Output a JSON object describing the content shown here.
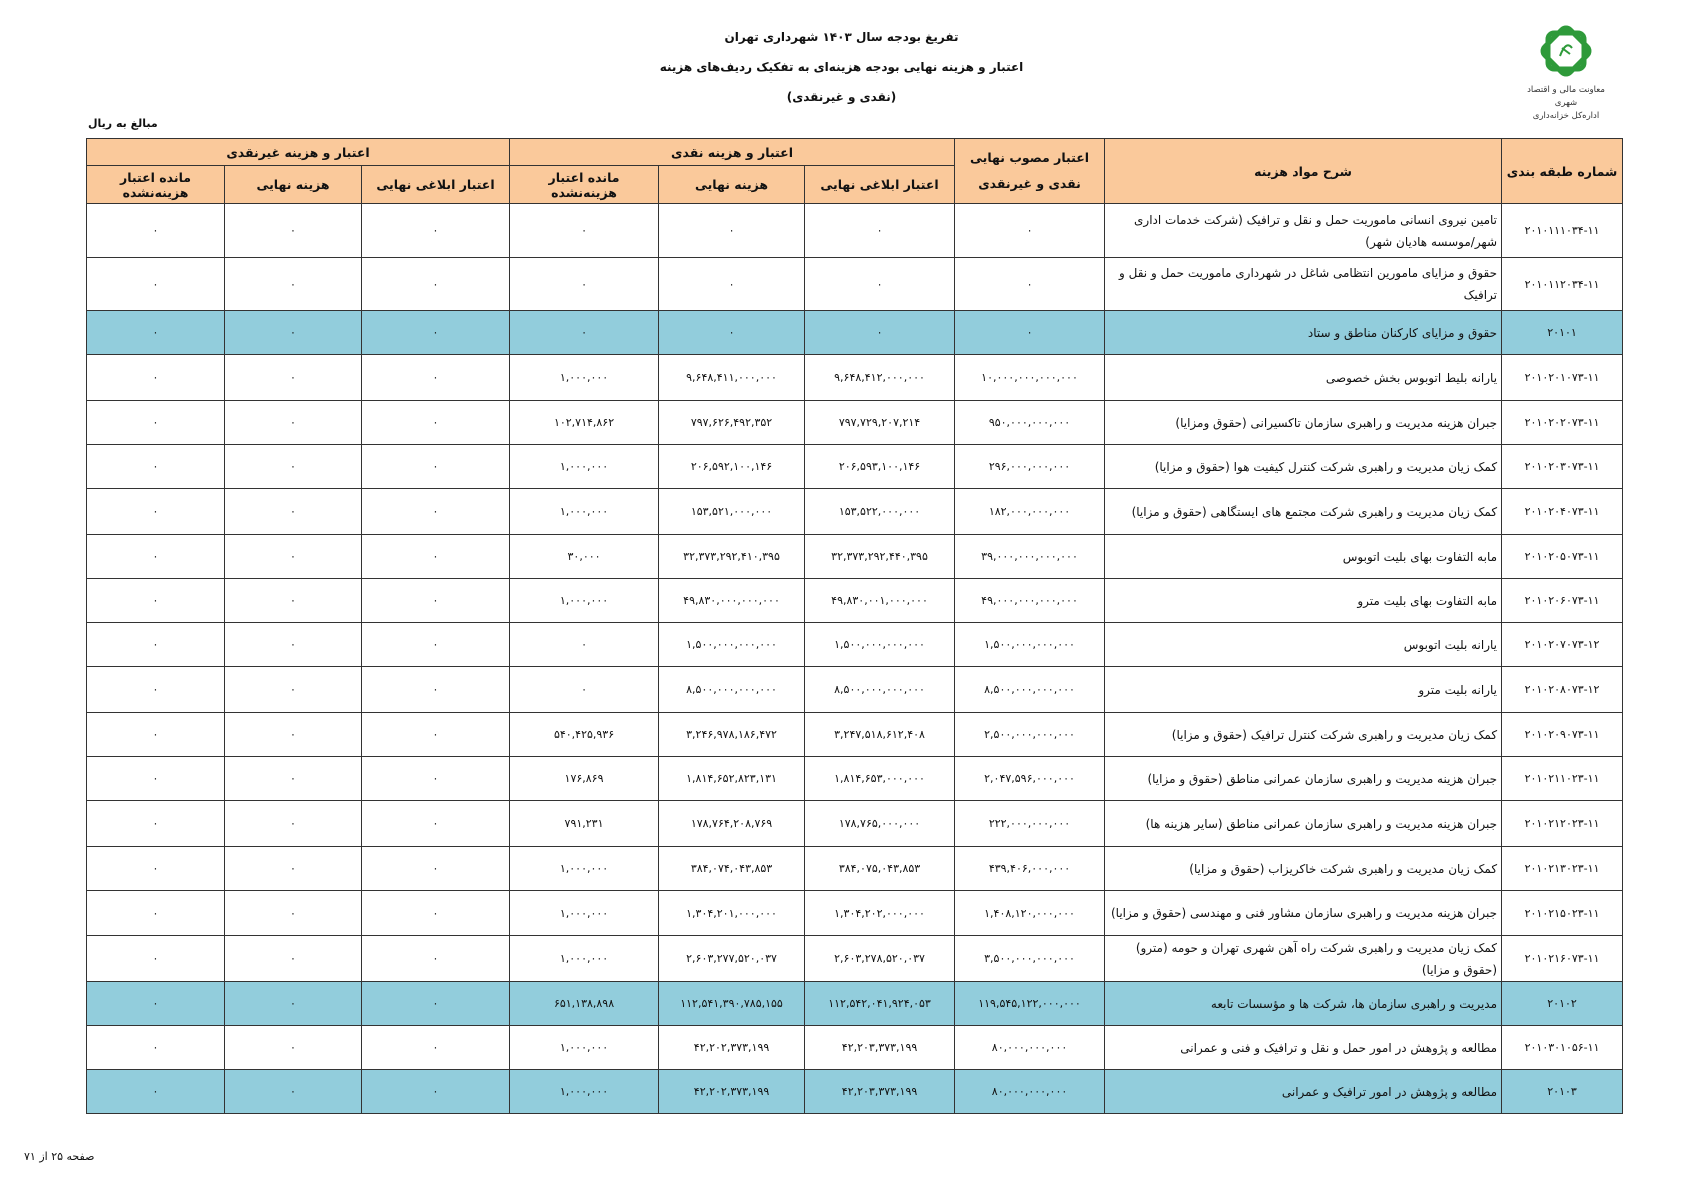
{
  "header": {
    "title": "تفریغ بودجه سال ۱۴۰۳ شهرداری تهران",
    "subtitle": "اعتبار و هزینه نهایی بودجه هزینه‌ای به تفکیک ردیف‌های هزینه",
    "subtitle2": "(نقدی و غیرنقدی)",
    "logo_caption_1": "معاونت مالی و اقتصاد شهری",
    "logo_caption_2": "اداره‌کل خزانه‌داری",
    "units": "مبالغ به ریال"
  },
  "colors": {
    "header_bg": "#FAC99B",
    "highlight_row": "#92CDDC"
  },
  "table": {
    "columns": {
      "code": "شماره طبقه بندی",
      "desc": "شرح مواد هزینه",
      "approved": "اعتبار مصوب نهایی نقدی و غیرنقدی",
      "cash_group": "اعتبار و هزینه نقدی",
      "noncash_group": "اعتبار و هزینه غیرنقدی",
      "final_credit": "اعتبار ابلاغی نهایی",
      "final_expense": "هزینه نهایی",
      "remaining": "مانده اعتبار هزینه‌نشده"
    },
    "rows": [
      {
        "code": "۲۰۱۰۱۱۱۰۳۴-۱۱",
        "desc": "تامین نیروی انسانی ماموریت حمل و نقل و ترافیک (شرکت خدمات اداری شهر/موسسه هادیان شهر)",
        "approved": "۰",
        "c_credit": "۰",
        "c_expense": "۰",
        "c_remain": "۰",
        "n_credit": "۰",
        "n_expense": "۰",
        "n_remain": "۰",
        "highlight": false
      },
      {
        "code": "۲۰۱۰۱۱۲۰۳۴-۱۱",
        "desc": "حقوق و مزایای مامورین انتظامی شاغل در شهرداری ماموریت حمل و نقل و ترافیک",
        "approved": "۰",
        "c_credit": "۰",
        "c_expense": "۰",
        "c_remain": "۰",
        "n_credit": "۰",
        "n_expense": "۰",
        "n_remain": "۰",
        "highlight": false
      },
      {
        "code": "۲۰۱۰۱",
        "desc": "حقوق و مزایای کارکنان مناطق و ستاد",
        "approved": "۰",
        "c_credit": "۰",
        "c_expense": "۰",
        "c_remain": "۰",
        "n_credit": "۰",
        "n_expense": "۰",
        "n_remain": "۰",
        "highlight": true
      },
      {
        "code": "۲۰۱۰۲۰۱۰۷۳-۱۱",
        "desc": "یارانه بلیط اتوبوس بخش خصوصی",
        "approved": "۱۰,۰۰۰,۰۰۰,۰۰۰,۰۰۰",
        "c_credit": "۹,۶۴۸,۴۱۲,۰۰۰,۰۰۰",
        "c_expense": "۹,۶۴۸,۴۱۱,۰۰۰,۰۰۰",
        "c_remain": "۱,۰۰۰,۰۰۰",
        "n_credit": "۰",
        "n_expense": "۰",
        "n_remain": "۰",
        "highlight": false
      },
      {
        "code": "۲۰۱۰۲۰۲۰۷۳-۱۱",
        "desc": "جبران هزینه مدیریت و راهبری سازمان تاکسیرانی (حقوق ومزایا)",
        "approved": "۹۵۰,۰۰۰,۰۰۰,۰۰۰",
        "c_credit": "۷۹۷,۷۲۹,۲۰۷,۲۱۴",
        "c_expense": "۷۹۷,۶۲۶,۴۹۲,۳۵۲",
        "c_remain": "۱۰۲,۷۱۴,۸۶۲",
        "n_credit": "۰",
        "n_expense": "۰",
        "n_remain": "۰",
        "highlight": false
      },
      {
        "code": "۲۰۱۰۲۰۳۰۷۳-۱۱",
        "desc": "کمک زیان مدیریت و راهبری شرکت کنترل کیفیت هوا (حقوق و مزایا)",
        "approved": "۲۹۶,۰۰۰,۰۰۰,۰۰۰",
        "c_credit": "۲۰۶,۵۹۳,۱۰۰,۱۴۶",
        "c_expense": "۲۰۶,۵۹۲,۱۰۰,۱۴۶",
        "c_remain": "۱,۰۰۰,۰۰۰",
        "n_credit": "۰",
        "n_expense": "۰",
        "n_remain": "۰",
        "highlight": false
      },
      {
        "code": "۲۰۱۰۲۰۴۰۷۳-۱۱",
        "desc": "کمک زیان مدیریت و راهبری شرکت مجتمع های ایستگاهی (حقوق و مزایا)",
        "approved": "۱۸۲,۰۰۰,۰۰۰,۰۰۰",
        "c_credit": "۱۵۳,۵۲۲,۰۰۰,۰۰۰",
        "c_expense": "۱۵۳,۵۲۱,۰۰۰,۰۰۰",
        "c_remain": "۱,۰۰۰,۰۰۰",
        "n_credit": "۰",
        "n_expense": "۰",
        "n_remain": "۰",
        "highlight": false
      },
      {
        "code": "۲۰۱۰۲۰۵۰۷۳-۱۱",
        "desc": "مابه التفاوت بهای بلیت اتوبوس",
        "approved": "۳۹,۰۰۰,۰۰۰,۰۰۰,۰۰۰",
        "c_credit": "۳۲,۳۷۳,۲۹۲,۴۴۰,۳۹۵",
        "c_expense": "۳۲,۳۷۳,۲۹۲,۴۱۰,۳۹۵",
        "c_remain": "۳۰,۰۰۰",
        "n_credit": "۰",
        "n_expense": "۰",
        "n_remain": "۰",
        "highlight": false
      },
      {
        "code": "۲۰۱۰۲۰۶۰۷۳-۱۱",
        "desc": "مابه التفاوت بهای بلیت مترو",
        "approved": "۴۹,۰۰۰,۰۰۰,۰۰۰,۰۰۰",
        "c_credit": "۴۹,۸۳۰,۰۰۱,۰۰۰,۰۰۰",
        "c_expense": "۴۹,۸۳۰,۰۰۰,۰۰۰,۰۰۰",
        "c_remain": "۱,۰۰۰,۰۰۰",
        "n_credit": "۰",
        "n_expense": "۰",
        "n_remain": "۰",
        "highlight": false
      },
      {
        "code": "۲۰۱۰۲۰۷۰۷۳-۱۲",
        "desc": "یارانه بلیت اتوبوس",
        "approved": "۱,۵۰۰,۰۰۰,۰۰۰,۰۰۰",
        "c_credit": "۱,۵۰۰,۰۰۰,۰۰۰,۰۰۰",
        "c_expense": "۱,۵۰۰,۰۰۰,۰۰۰,۰۰۰",
        "c_remain": "۰",
        "n_credit": "۰",
        "n_expense": "۰",
        "n_remain": "۰",
        "highlight": false
      },
      {
        "code": "۲۰۱۰۲۰۸۰۷۳-۱۲",
        "desc": "یارانه بلیت مترو",
        "approved": "۸,۵۰۰,۰۰۰,۰۰۰,۰۰۰",
        "c_credit": "۸,۵۰۰,۰۰۰,۰۰۰,۰۰۰",
        "c_expense": "۸,۵۰۰,۰۰۰,۰۰۰,۰۰۰",
        "c_remain": "۰",
        "n_credit": "۰",
        "n_expense": "۰",
        "n_remain": "۰",
        "highlight": false
      },
      {
        "code": "۲۰۱۰۲۰۹۰۷۳-۱۱",
        "desc": "کمک زیان مدیریت و راهبری شرکت کنترل ترافیک (حقوق و مزایا)",
        "approved": "۲,۵۰۰,۰۰۰,۰۰۰,۰۰۰",
        "c_credit": "۳,۲۴۷,۵۱۸,۶۱۲,۴۰۸",
        "c_expense": "۳,۲۴۶,۹۷۸,۱۸۶,۴۷۲",
        "c_remain": "۵۴۰,۴۲۵,۹۳۶",
        "n_credit": "۰",
        "n_expense": "۰",
        "n_remain": "۰",
        "highlight": false
      },
      {
        "code": "۲۰۱۰۲۱۱۰۲۳-۱۱",
        "desc": "جبران هزینه مدیریت و راهبری سازمان عمرانی مناطق (حقوق و مزایا)",
        "approved": "۲,۰۴۷,۵۹۶,۰۰۰,۰۰۰",
        "c_credit": "۱,۸۱۴,۶۵۳,۰۰۰,۰۰۰",
        "c_expense": "۱,۸۱۴,۶۵۲,۸۲۳,۱۳۱",
        "c_remain": "۱۷۶,۸۶۹",
        "n_credit": "۰",
        "n_expense": "۰",
        "n_remain": "۰",
        "highlight": false
      },
      {
        "code": "۲۰۱۰۲۱۲۰۲۳-۱۱",
        "desc": "جبران هزینه مدیریت و راهبری سازمان عمرانی مناطق (سایر هزینه ها)",
        "approved": "۲۲۲,۰۰۰,۰۰۰,۰۰۰",
        "c_credit": "۱۷۸,۷۶۵,۰۰۰,۰۰۰",
        "c_expense": "۱۷۸,۷۶۴,۲۰۸,۷۶۹",
        "c_remain": "۷۹۱,۲۳۱",
        "n_credit": "۰",
        "n_expense": "۰",
        "n_remain": "۰",
        "highlight": false
      },
      {
        "code": "۲۰۱۰۲۱۳۰۲۳-۱۱",
        "desc": "کمک زیان مدیریت و راهبری شرکت خاکریزاب (حقوق و مزایا)",
        "approved": "۴۳۹,۴۰۶,۰۰۰,۰۰۰",
        "c_credit": "۳۸۴,۰۷۵,۰۴۳,۸۵۳",
        "c_expense": "۳۸۴,۰۷۴,۰۴۳,۸۵۳",
        "c_remain": "۱,۰۰۰,۰۰۰",
        "n_credit": "۰",
        "n_expense": "۰",
        "n_remain": "۰",
        "highlight": false
      },
      {
        "code": "۲۰۱۰۲۱۵۰۲۳-۱۱",
        "desc": "جبران هزینه مدیریت و راهبری سازمان مشاور فنی و مهندسی (حقوق و مزایا)",
        "approved": "۱,۴۰۸,۱۲۰,۰۰۰,۰۰۰",
        "c_credit": "۱,۳۰۴,۲۰۲,۰۰۰,۰۰۰",
        "c_expense": "۱,۳۰۴,۲۰۱,۰۰۰,۰۰۰",
        "c_remain": "۱,۰۰۰,۰۰۰",
        "n_credit": "۰",
        "n_expense": "۰",
        "n_remain": "۰",
        "highlight": false
      },
      {
        "code": "۲۰۱۰۲۱۶۰۷۳-۱۱",
        "desc": "کمک زیان مدیریت و راهبری شرکت راه آهن شهری تهران و حومه (مترو)(حقوق و مزایا)",
        "approved": "۳,۵۰۰,۰۰۰,۰۰۰,۰۰۰",
        "c_credit": "۲,۶۰۳,۲۷۸,۵۲۰,۰۳۷",
        "c_expense": "۲,۶۰۳,۲۷۷,۵۲۰,۰۳۷",
        "c_remain": "۱,۰۰۰,۰۰۰",
        "n_credit": "۰",
        "n_expense": "۰",
        "n_remain": "۰",
        "highlight": false
      },
      {
        "code": "۲۰۱۰۲",
        "desc": "مدیریت و راهبری سازمان ها، شرکت ها و مؤسسات تابعه",
        "approved": "۱۱۹,۵۴۵,۱۲۲,۰۰۰,۰۰۰",
        "c_credit": "۱۱۲,۵۴۲,۰۴۱,۹۲۴,۰۵۳",
        "c_expense": "۱۱۲,۵۴۱,۳۹۰,۷۸۵,۱۵۵",
        "c_remain": "۶۵۱,۱۳۸,۸۹۸",
        "n_credit": "۰",
        "n_expense": "۰",
        "n_remain": "۰",
        "highlight": true
      },
      {
        "code": "۲۰۱۰۳۰۱۰۵۶-۱۱",
        "desc": "مطالعه و پژوهش در امور حمل و نقل و ترافیک و فنی و عمرانی",
        "approved": "۸۰,۰۰۰,۰۰۰,۰۰۰",
        "c_credit": "۴۲,۲۰۳,۳۷۳,۱۹۹",
        "c_expense": "۴۲,۲۰۲,۳۷۳,۱۹۹",
        "c_remain": "۱,۰۰۰,۰۰۰",
        "n_credit": "۰",
        "n_expense": "۰",
        "n_remain": "۰",
        "highlight": false
      },
      {
        "code": "۲۰۱۰۳",
        "desc": "مطالعه و پژوهش در امور ترافیک و عمرانی",
        "approved": "۸۰,۰۰۰,۰۰۰,۰۰۰",
        "c_credit": "۴۲,۲۰۳,۳۷۳,۱۹۹",
        "c_expense": "۴۲,۲۰۲,۳۷۳,۱۹۹",
        "c_remain": "۱,۰۰۰,۰۰۰",
        "n_credit": "۰",
        "n_expense": "۰",
        "n_remain": "۰",
        "highlight": true
      }
    ]
  },
  "footer": {
    "page": "صفحه ۲۵ از ۷۱"
  }
}
